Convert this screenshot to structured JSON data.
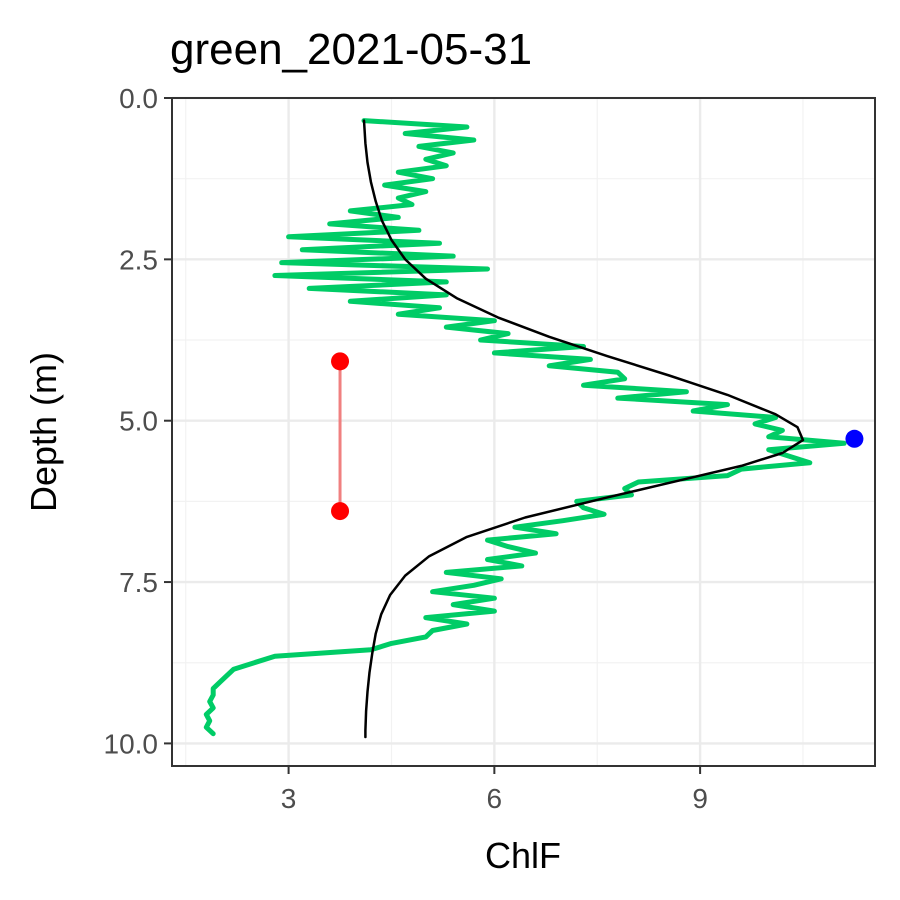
{
  "chart_data": {
    "type": "line",
    "title": "green_2021-05-31",
    "xlabel": "ChlF",
    "ylabel": "Depth (m)",
    "xlim": [
      1.3,
      11.55
    ],
    "ylim": [
      10.35,
      0.0
    ],
    "y_reversed": true,
    "x_ticks": [
      3,
      6,
      9
    ],
    "y_ticks": [
      0.0,
      2.5,
      5.0,
      7.5,
      10.0
    ],
    "x_tick_labels": [
      "3",
      "6",
      "9"
    ],
    "y_tick_labels": [
      "0.0",
      "2.5",
      "5.0",
      "7.5",
      "10.0"
    ],
    "grid": true,
    "colors": {
      "raw_profile": "#00cc66",
      "fitted_curve": "#000000",
      "peak_point": "#0000ff",
      "range_points": "#ff0000",
      "range_line": "#f08080",
      "grid_major": "#ebebeb",
      "grid_minor": "#f2f2f2",
      "panel_border": "#333333"
    },
    "series": [
      {
        "kind": "raw_profile",
        "depth": [
          0.35,
          0.45,
          0.55,
          0.65,
          0.75,
          0.85,
          0.95,
          1.05,
          1.15,
          1.25,
          1.35,
          1.45,
          1.55,
          1.65,
          1.75,
          1.85,
          1.95,
          2.05,
          2.15,
          2.25,
          2.35,
          2.45,
          2.55,
          2.65,
          2.75,
          2.85,
          2.95,
          3.05,
          3.15,
          3.25,
          3.35,
          3.45,
          3.55,
          3.65,
          3.75,
          3.85,
          3.95,
          4.05,
          4.15,
          4.25,
          4.35,
          4.45,
          4.55,
          4.65,
          4.75,
          4.85,
          4.95,
          5.05,
          5.15,
          5.25,
          5.35,
          5.45,
          5.55,
          5.65,
          5.75,
          5.85,
          5.95,
          6.05,
          6.15,
          6.25,
          6.35,
          6.45,
          6.55,
          6.65,
          6.75,
          6.85,
          6.95,
          7.05,
          7.15,
          7.25,
          7.35,
          7.45,
          7.55,
          7.65,
          7.75,
          7.85,
          7.95,
          8.05,
          8.15,
          8.25,
          8.35,
          8.45,
          8.55,
          8.65,
          8.75,
          8.85,
          8.95,
          9.05,
          9.15,
          9.25,
          9.35,
          9.45,
          9.55,
          9.65,
          9.75,
          9.85
        ],
        "chlf": [
          4.1,
          5.6,
          4.7,
          5.7,
          4.9,
          5.4,
          5.0,
          5.3,
          4.6,
          5.1,
          4.4,
          5.0,
          4.6,
          4.8,
          3.9,
          4.6,
          3.6,
          4.9,
          3.0,
          5.2,
          3.2,
          5.4,
          2.9,
          5.9,
          2.8,
          5.3,
          3.3,
          5.3,
          3.9,
          5.2,
          4.6,
          6.0,
          5.3,
          6.2,
          5.8,
          7.3,
          6.0,
          7.4,
          6.8,
          7.8,
          7.9,
          7.3,
          8.8,
          7.8,
          9.4,
          8.9,
          10.1,
          9.8,
          10.2,
          10.0,
          11.1,
          10.0,
          10.3,
          10.6,
          9.6,
          9.4,
          8.1,
          7.9,
          8.0,
          7.2,
          7.3,
          7.6,
          7.0,
          6.3,
          6.9,
          5.9,
          6.2,
          6.6,
          5.9,
          6.4,
          5.3,
          6.1,
          5.7,
          5.1,
          6.0,
          5.4,
          6.0,
          5.0,
          5.6,
          5.1,
          5.0,
          4.5,
          4.2,
          2.8,
          2.5,
          2.2,
          2.1,
          2.0,
          1.9,
          1.9,
          1.85,
          1.9,
          1.8,
          1.85,
          1.8,
          1.9
        ]
      },
      {
        "kind": "fitted_curve",
        "depth": [
          0.35,
          0.7,
          1.0,
          1.3,
          1.6,
          1.9,
          2.2,
          2.5,
          2.8,
          3.1,
          3.4,
          3.7,
          4.0,
          4.3,
          4.6,
          4.9,
          5.1,
          5.3,
          5.5,
          5.7,
          5.9,
          6.2,
          6.5,
          6.8,
          7.1,
          7.4,
          7.7,
          8.0,
          8.3,
          8.6,
          8.9,
          9.2,
          9.5,
          9.8,
          9.9
        ],
        "chlf": [
          4.1,
          4.12,
          4.15,
          4.2,
          4.27,
          4.36,
          4.5,
          4.7,
          5.0,
          5.45,
          6.05,
          6.8,
          7.65,
          8.55,
          9.4,
          10.1,
          10.42,
          10.5,
          10.2,
          9.6,
          8.8,
          7.6,
          6.45,
          5.6,
          5.05,
          4.7,
          4.48,
          4.35,
          4.27,
          4.22,
          4.18,
          4.15,
          4.13,
          4.12,
          4.12
        ]
      },
      {
        "kind": "peak_point",
        "chlf": 11.25,
        "depth": 5.28
      },
      {
        "kind": "range",
        "chlf": 3.75,
        "depth_top": 4.08,
        "depth_bottom": 6.4
      }
    ]
  }
}
